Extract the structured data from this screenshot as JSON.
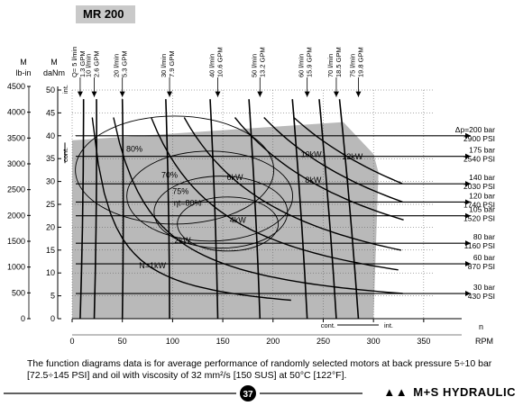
{
  "header": {
    "model": "MR 200"
  },
  "chart_data": {
    "type": "line",
    "title": "MR 200",
    "xlabel": "n RPM",
    "x_axis": {
      "label_top": "n",
      "label_bottom": "RPM",
      "range": [
        0,
        360
      ],
      "ticks": [
        0,
        50,
        100,
        150,
        200,
        250,
        300,
        350
      ]
    },
    "y_axis_left_lbin": {
      "label": "M lb-in",
      "range": [
        0,
        4500
      ],
      "ticks": [
        0,
        500,
        1000,
        1500,
        2000,
        2500,
        3000,
        3500,
        4000,
        4500
      ]
    },
    "y_axis_left_danm": {
      "label": "M daNm",
      "range": [
        0,
        50
      ],
      "ticks": [
        0,
        5,
        10,
        15,
        20,
        25,
        30,
        35,
        40,
        45,
        50
      ]
    },
    "y_axis_labels": {
      "top": "M",
      "lbin": "lb-in",
      "danm": "daNm"
    },
    "flow_labels": [
      {
        "lpm": "Q= 5 l/min",
        "gpm": "1.3 GPM",
        "rpm": 8
      },
      {
        "lpm": "10 l/min",
        "gpm": "2.6 GPM",
        "rpm": 22
      },
      {
        "lpm": "20 l/min",
        "gpm": "5.3 GPM",
        "rpm": 50
      },
      {
        "lpm": "30 l/min",
        "gpm": "7.9 GPM",
        "rpm": 97
      },
      {
        "lpm": "40 l/min",
        "gpm": "10.6 GPM",
        "rpm": 145
      },
      {
        "lpm": "50 l/min",
        "gpm": "13.2 GPM",
        "rpm": 187
      },
      {
        "lpm": "60 l/min",
        "gpm": "15.9 GPM",
        "rpm": 234
      },
      {
        "lpm": "70 l/min",
        "gpm": "18.5 GPM",
        "rpm": 263
      },
      {
        "lpm": "75 l/min",
        "gpm": "19.8 GPM",
        "rpm": 285
      }
    ],
    "pressure_labels": [
      {
        "bar": "Δp=200 bar",
        "psi": "2900 PSI",
        "torque": 40
      },
      {
        "bar": "175 bar",
        "psi": "2540 PSI",
        "torque": 35.5
      },
      {
        "bar": "140 bar",
        "psi": "2030 PSI",
        "torque": 29.5
      },
      {
        "bar": "120 bar",
        "psi": "1740 PSI",
        "torque": 25.5
      },
      {
        "bar": "105 bar",
        "psi": "1520 PSI",
        "torque": 22.5
      },
      {
        "bar": "80 bar",
        "psi": "1160 PSI",
        "torque": 16.5
      },
      {
        "bar": "60 bar",
        "psi": "870 PSI",
        "torque": 12
      },
      {
        "bar": "30 bar",
        "psi": "430 PSI",
        "torque": 5.5
      }
    ],
    "power_labels": [
      {
        "text": "N=1kW",
        "rpm": 80,
        "torque": 11
      },
      {
        "text": "2kW",
        "rpm": 110,
        "torque": 16.5
      },
      {
        "text": "4kW",
        "rpm": 165,
        "torque": 21
      },
      {
        "text": "6kW",
        "rpm": 162,
        "torque": 30.3
      },
      {
        "text": "8kW",
        "rpm": 240,
        "torque": 29.7
      },
      {
        "text": "10kW",
        "rpm": 238,
        "torque": 35.3
      },
      {
        "text": "12kW",
        "rpm": 279,
        "torque": 34.8
      }
    ],
    "efficiency_labels": [
      {
        "text": "80%",
        "rpm": 62,
        "torque": 36.5
      },
      {
        "text": "70%",
        "rpm": 97,
        "torque": 30.8
      },
      {
        "text": "75%",
        "rpm": 108,
        "torque": 27.3
      },
      {
        "text": "ηt=80%",
        "rpm": 115,
        "torque": 24.7
      }
    ],
    "zone_labels": {
      "int_y": "int.",
      "cont_y": "cont.",
      "cont_x": "cont.",
      "int_x": "int."
    },
    "continuous_region": {
      "rpm": [
        0,
        0,
        270,
        300,
        305,
        300,
        0
      ],
      "torque": [
        0,
        39,
        43,
        36,
        32,
        0,
        0
      ]
    }
  },
  "footnote": "The function diagrams data is for average performance of randomly selected motors at back pressure 5÷10 bar [72.5÷145 PSI] and oil with viscosity of 32 mm²/s [150 SUS] at 50°C [122°F].",
  "page_number": "37",
  "brand": "M+S HYDRAULIC"
}
